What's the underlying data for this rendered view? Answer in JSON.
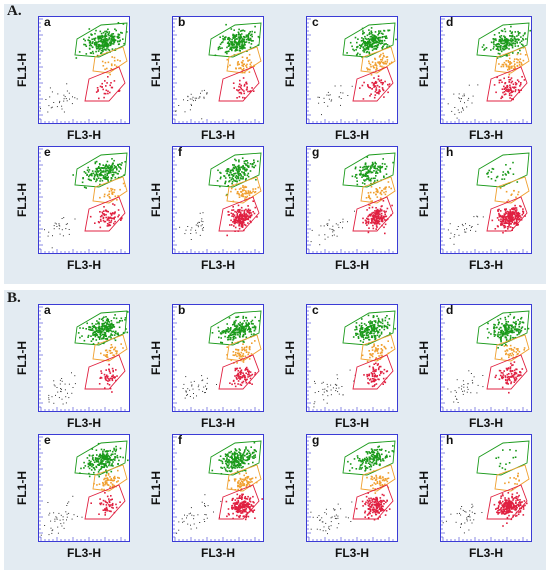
{
  "sections": [
    {
      "label": "A.",
      "panels": [
        "a",
        "b",
        "c",
        "d",
        "e",
        "f",
        "g",
        "h"
      ]
    },
    {
      "label": "B.",
      "panels": [
        "a",
        "b",
        "c",
        "d",
        "e",
        "f",
        "g",
        "h"
      ]
    }
  ],
  "colors": {
    "background": "#e3ebf2",
    "axis": "#3b3bd6",
    "gate_green": "#1a9a1a",
    "gate_orange": "#f0a030",
    "gate_red": "#e02040",
    "events_black": "#333333"
  },
  "chart_data": {
    "type": "scatter",
    "xlabel": "FL3-H",
    "ylabel": "FL1-H",
    "populations": [
      "green",
      "orange",
      "red",
      "black"
    ],
    "panels": [
      {
        "section": "A.",
        "panel": "a",
        "relative_counts": {
          "green": 1.0,
          "orange": 0.15,
          "red": 0.12,
          "black": 0.35
        }
      },
      {
        "section": "A.",
        "panel": "b",
        "relative_counts": {
          "green": 0.9,
          "orange": 0.35,
          "red": 0.15,
          "black": 0.35
        }
      },
      {
        "section": "A.",
        "panel": "c",
        "relative_counts": {
          "green": 0.85,
          "orange": 0.5,
          "red": 0.25,
          "black": 0.3
        }
      },
      {
        "section": "A.",
        "panel": "d",
        "relative_counts": {
          "green": 0.7,
          "orange": 0.45,
          "red": 0.35,
          "black": 0.35
        }
      },
      {
        "section": "A.",
        "panel": "e",
        "relative_counts": {
          "green": 0.7,
          "orange": 0.2,
          "red": 0.3,
          "black": 0.3
        }
      },
      {
        "section": "A.",
        "panel": "f",
        "relative_counts": {
          "green": 0.6,
          "orange": 0.5,
          "red": 0.8,
          "black": 0.3
        }
      },
      {
        "section": "A.",
        "panel": "g",
        "relative_counts": {
          "green": 0.5,
          "orange": 0.35,
          "red": 0.7,
          "black": 0.35
        }
      },
      {
        "section": "A.",
        "panel": "h",
        "relative_counts": {
          "green": 0.1,
          "orange": 0.1,
          "red": 1.0,
          "black": 0.3
        }
      },
      {
        "section": "B.",
        "panel": "a",
        "relative_counts": {
          "green": 0.9,
          "orange": 0.25,
          "red": 0.2,
          "black": 0.4
        }
      },
      {
        "section": "B.",
        "panel": "b",
        "relative_counts": {
          "green": 0.8,
          "orange": 0.5,
          "red": 0.35,
          "black": 0.4
        }
      },
      {
        "section": "B.",
        "panel": "c",
        "relative_counts": {
          "green": 0.75,
          "orange": 0.4,
          "red": 0.3,
          "black": 0.45
        }
      },
      {
        "section": "B.",
        "panel": "d",
        "relative_counts": {
          "green": 0.7,
          "orange": 0.3,
          "red": 0.35,
          "black": 0.4
        }
      },
      {
        "section": "B.",
        "panel": "e",
        "relative_counts": {
          "green": 0.8,
          "orange": 0.45,
          "red": 0.2,
          "black": 0.45
        }
      },
      {
        "section": "B.",
        "panel": "f",
        "relative_counts": {
          "green": 0.85,
          "orange": 0.65,
          "red": 0.85,
          "black": 0.4
        }
      },
      {
        "section": "B.",
        "panel": "g",
        "relative_counts": {
          "green": 0.55,
          "orange": 0.45,
          "red": 0.6,
          "black": 0.5
        }
      },
      {
        "section": "B.",
        "panel": "h",
        "relative_counts": {
          "green": 0.05,
          "orange": 0.1,
          "red": 1.0,
          "black": 0.4
        }
      }
    ]
  }
}
